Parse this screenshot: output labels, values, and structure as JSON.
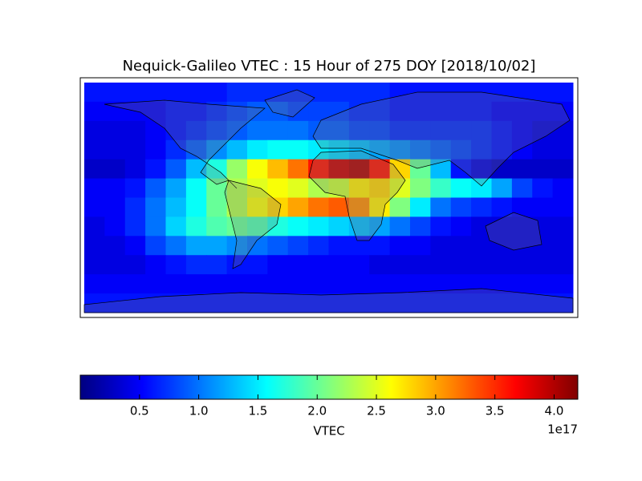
{
  "chart_data": {
    "type": "heatmap",
    "title": "Nequick-Galileo VTEC : 15 Hour of 275 DOY [2018/10/02]",
    "values": [
      [
        0.6,
        0.6,
        0.6,
        0.6,
        0.6,
        0.6,
        0.6,
        0.7,
        0.7,
        0.7,
        0.7,
        0.7,
        0.7,
        0.7,
        0.7,
        0.6,
        0.6,
        0.6,
        0.6,
        0.6,
        0.6,
        0.6,
        0.6,
        0.6
      ],
      [
        0.5,
        0.5,
        0.5,
        0.5,
        0.6,
        0.6,
        0.7,
        0.8,
        0.9,
        0.9,
        0.8,
        0.8,
        0.8,
        0.7,
        0.7,
        0.6,
        0.6,
        0.6,
        0.6,
        0.6,
        0.5,
        0.5,
        0.5,
        0.5
      ],
      [
        0.4,
        0.4,
        0.4,
        0.5,
        0.6,
        0.7,
        0.8,
        0.9,
        1.0,
        1.0,
        1.0,
        0.9,
        0.9,
        0.8,
        0.8,
        0.7,
        0.7,
        0.7,
        0.7,
        0.7,
        0.6,
        0.5,
        0.4,
        0.4
      ],
      [
        0.4,
        0.4,
        0.4,
        0.5,
        0.7,
        0.9,
        1.1,
        1.3,
        1.5,
        1.6,
        1.6,
        1.5,
        1.4,
        1.3,
        1.2,
        1.1,
        1.0,
        0.9,
        0.8,
        0.7,
        0.6,
        0.5,
        0.4,
        0.4
      ],
      [
        0.3,
        0.3,
        0.4,
        0.6,
        0.9,
        1.3,
        1.7,
        2.2,
        2.6,
        2.9,
        3.2,
        3.6,
        3.9,
        4.0,
        3.6,
        2.8,
        2.0,
        1.3,
        0.6,
        0.4,
        0.3,
        0.3,
        0.3,
        0.3
      ],
      [
        0.5,
        0.5,
        0.6,
        0.9,
        1.2,
        1.6,
        2.0,
        2.3,
        2.5,
        2.6,
        2.5,
        2.3,
        2.4,
        2.7,
        2.8,
        2.5,
        2.1,
        1.8,
        1.6,
        1.5,
        1.2,
        0.8,
        0.6,
        0.5
      ],
      [
        0.5,
        0.5,
        0.7,
        1.0,
        1.3,
        1.6,
        2.0,
        2.3,
        2.6,
        2.8,
        3.0,
        3.2,
        3.3,
        3.1,
        2.7,
        2.1,
        1.5,
        1.0,
        0.8,
        0.7,
        0.6,
        0.5,
        0.5,
        0.5
      ],
      [
        0.4,
        0.5,
        0.7,
        1.0,
        1.4,
        1.7,
        1.9,
        2.0,
        1.9,
        1.7,
        1.6,
        1.5,
        1.4,
        1.3,
        1.2,
        1.0,
        0.8,
        0.6,
        0.5,
        0.4,
        0.4,
        0.4,
        0.4,
        0.4
      ],
      [
        0.4,
        0.4,
        0.5,
        0.8,
        1.0,
        1.2,
        1.2,
        1.1,
        1.0,
        0.9,
        0.8,
        0.7,
        0.6,
        0.6,
        0.6,
        0.5,
        0.5,
        0.4,
        0.4,
        0.4,
        0.4,
        0.4,
        0.4,
        0.4
      ],
      [
        0.4,
        0.4,
        0.4,
        0.5,
        0.6,
        0.7,
        0.7,
        0.6,
        0.6,
        0.5,
        0.5,
        0.5,
        0.5,
        0.5,
        0.4,
        0.4,
        0.4,
        0.4,
        0.4,
        0.4,
        0.4,
        0.4,
        0.4,
        0.4
      ],
      [
        0.5,
        0.5,
        0.5,
        0.5,
        0.5,
        0.5,
        0.5,
        0.5,
        0.5,
        0.5,
        0.5,
        0.5,
        0.5,
        0.5,
        0.5,
        0.5,
        0.5,
        0.5,
        0.5,
        0.5,
        0.5,
        0.5,
        0.5,
        0.5
      ],
      [
        0.6,
        0.6,
        0.6,
        0.6,
        0.6,
        0.6,
        0.6,
        0.6,
        0.6,
        0.6,
        0.6,
        0.6,
        0.6,
        0.6,
        0.6,
        0.6,
        0.6,
        0.6,
        0.6,
        0.6,
        0.6,
        0.6,
        0.6,
        0.6
      ]
    ],
    "colormap": "jet",
    "colorbar": {
      "label": "VTEC",
      "offset_label": "1e17",
      "lim": [
        0,
        4.2
      ],
      "ticks": [
        0.5,
        {
          "value": 1,
          "label": "1.0"
        },
        1.5,
        {
          "value": 2,
          "label": "2.0"
        },
        2.5,
        {
          "value": 3,
          "label": "3.0"
        },
        3.5,
        {
          "value": 4,
          "label": "4.0"
        }
      ]
    }
  }
}
